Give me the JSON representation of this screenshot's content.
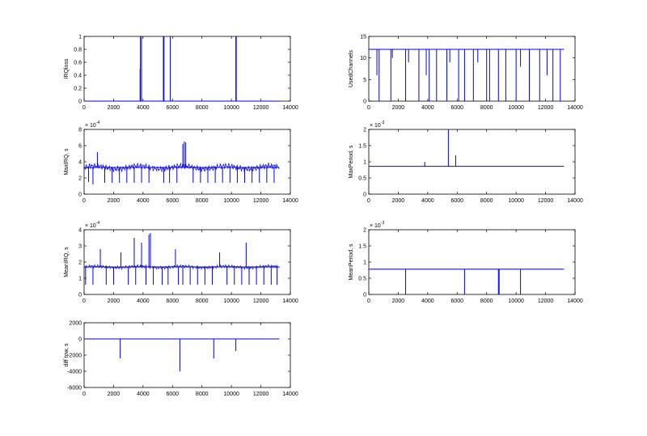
{
  "chart_data": [
    {
      "type": "line",
      "ylabel": "IRQloss",
      "xlim": [
        0,
        14000
      ],
      "ylim": [
        0,
        1
      ],
      "xticks": [
        "0",
        "2000",
        "4000",
        "6000",
        "8000",
        "10000",
        "12000",
        "14000"
      ],
      "yticks": [
        "0",
        "0.2",
        "0.4",
        "0.6",
        "0.8",
        "1"
      ],
      "exponent": "",
      "baseline": 0,
      "x": [
        3800,
        3820,
        3900,
        5380,
        5420,
        5850,
        10300,
        10330
      ],
      "y": [
        0.5,
        1,
        1,
        1,
        1,
        1,
        1,
        1
      ],
      "annotations": []
    },
    {
      "type": "line",
      "ylabel": "UsedChannels",
      "xlim": [
        0,
        14000
      ],
      "ylim": [
        0,
        15
      ],
      "xticks": [
        "0",
        "2000",
        "4000",
        "6000",
        "8000",
        "10000",
        "12000",
        "14000"
      ],
      "yticks": [
        "0",
        "5",
        "10",
        "15"
      ],
      "exponent": "",
      "baseline": 12,
      "x": [
        550,
        700,
        1500,
        1600,
        2500,
        2700,
        3400,
        3900,
        4100,
        4600,
        5300,
        5500,
        6100,
        6500,
        7100,
        7400,
        8000,
        8200,
        8800,
        9300,
        10000,
        10300,
        10900,
        11600,
        12100,
        12500,
        13000
      ],
      "y": [
        6,
        0,
        0,
        10,
        0,
        9,
        0,
        6,
        0,
        0,
        0,
        9,
        0,
        0,
        0,
        9,
        0,
        0,
        0,
        0,
        0,
        8,
        0,
        0,
        6,
        0,
        0
      ],
      "annotations": []
    },
    {
      "type": "line",
      "ylabel": "MaxIRQ, s",
      "xlim": [
        0,
        14000
      ],
      "ylim": [
        0,
        8
      ],
      "xticks": [
        "0",
        "2000",
        "4000",
        "6000",
        "8000",
        "10000",
        "12000",
        "14000"
      ],
      "yticks": [
        "0",
        "2",
        "4",
        "6",
        "8"
      ],
      "exponent": "× 10^-4",
      "baseline": 3.3,
      "x": [
        300,
        600,
        900,
        1400,
        1900,
        2400,
        2900,
        3400,
        3900,
        4400,
        5400,
        5800,
        6300,
        6700,
        6800,
        6900,
        7400,
        7900,
        8400,
        8900,
        9400,
        9900,
        10400,
        10900,
        11400,
        11900,
        12400,
        12900
      ],
      "y": [
        1.5,
        1.2,
        5.2,
        1.4,
        1.4,
        1.4,
        1.4,
        1.4,
        1.4,
        1.4,
        1.4,
        1.4,
        1.4,
        6.2,
        6.5,
        6.4,
        1.4,
        1.4,
        1.4,
        1.4,
        1.4,
        1.4,
        1.4,
        1.4,
        1.4,
        1.4,
        1.4,
        1.4
      ],
      "annotations": []
    },
    {
      "type": "line",
      "ylabel": "MaxPeriod, s",
      "xlim": [
        0,
        14000
      ],
      "ylim": [
        0,
        2
      ],
      "xticks": [
        "0",
        "2000",
        "4000",
        "6000",
        "8000",
        "10000",
        "12000",
        "14000"
      ],
      "yticks": [
        "0",
        "0.5",
        "1",
        "1.5",
        "2"
      ],
      "exponent": "× 10^-3",
      "baseline": 0.86,
      "x": [
        3800,
        5400,
        5900
      ],
      "y": [
        1.0,
        2.0,
        1.2
      ],
      "annotations": []
    },
    {
      "type": "line",
      "ylabel": "MeanIRQ, s",
      "xlim": [
        0,
        14000
      ],
      "ylim": [
        0,
        4
      ],
      "xticks": [
        "0",
        "2000",
        "4000",
        "6000",
        "8000",
        "10000",
        "12000",
        "14000"
      ],
      "yticks": [
        "0",
        "1",
        "2",
        "3",
        "4"
      ],
      "exponent": "× 10^-4",
      "baseline": 1.7,
      "x": [
        100,
        600,
        1100,
        1500,
        2000,
        2500,
        3000,
        3400,
        3500,
        3900,
        4200,
        4400,
        4500,
        4700,
        5300,
        5700,
        6200,
        6400,
        6700,
        7200,
        7700,
        8200,
        8700,
        9200,
        9700,
        10200,
        10700,
        11000,
        11200,
        11700,
        12200,
        12700,
        13100
      ],
      "y": [
        0.6,
        0.6,
        2.8,
        0.6,
        0.6,
        2.6,
        0.6,
        3.5,
        0.6,
        3.2,
        0.6,
        3.7,
        3.8,
        0.6,
        0.6,
        0.6,
        2.8,
        0.6,
        0.6,
        0.6,
        0.6,
        0.6,
        0.6,
        2.6,
        0.6,
        0.6,
        0.6,
        3.2,
        0.6,
        0.6,
        0.6,
        0.6,
        0.6
      ],
      "annotations": []
    },
    {
      "type": "line",
      "ylabel": "MeanPeriod, s",
      "xlim": [
        0,
        14000
      ],
      "ylim": [
        0,
        2
      ],
      "xticks": [
        "0",
        "2000",
        "4000",
        "6000",
        "8000",
        "10000",
        "12000",
        "14000"
      ],
      "yticks": [
        "0",
        "0.5",
        "1",
        "1.5",
        "2"
      ],
      "exponent": "× 10^-3",
      "baseline": 0.78,
      "x": [
        2500,
        6500,
        8800,
        8850,
        10300
      ],
      "y": [
        0,
        0,
        0,
        0,
        0
      ],
      "annotations": []
    },
    {
      "type": "line",
      "ylabel": "diff tow, s",
      "xlim": [
        0,
        14000
      ],
      "ylim": [
        -6000,
        2000
      ],
      "xticks": [
        "0",
        "2000",
        "4000",
        "6000",
        "8000",
        "10000",
        "12000",
        "14000"
      ],
      "yticks": [
        "-6000",
        "-4000",
        "-2000",
        "0",
        "2000"
      ],
      "exponent": "",
      "baseline": 0,
      "x": [
        2450,
        6500,
        8800,
        10300
      ],
      "y": [
        -2400,
        -4000,
        -2400,
        -1500
      ],
      "annotations": []
    }
  ]
}
